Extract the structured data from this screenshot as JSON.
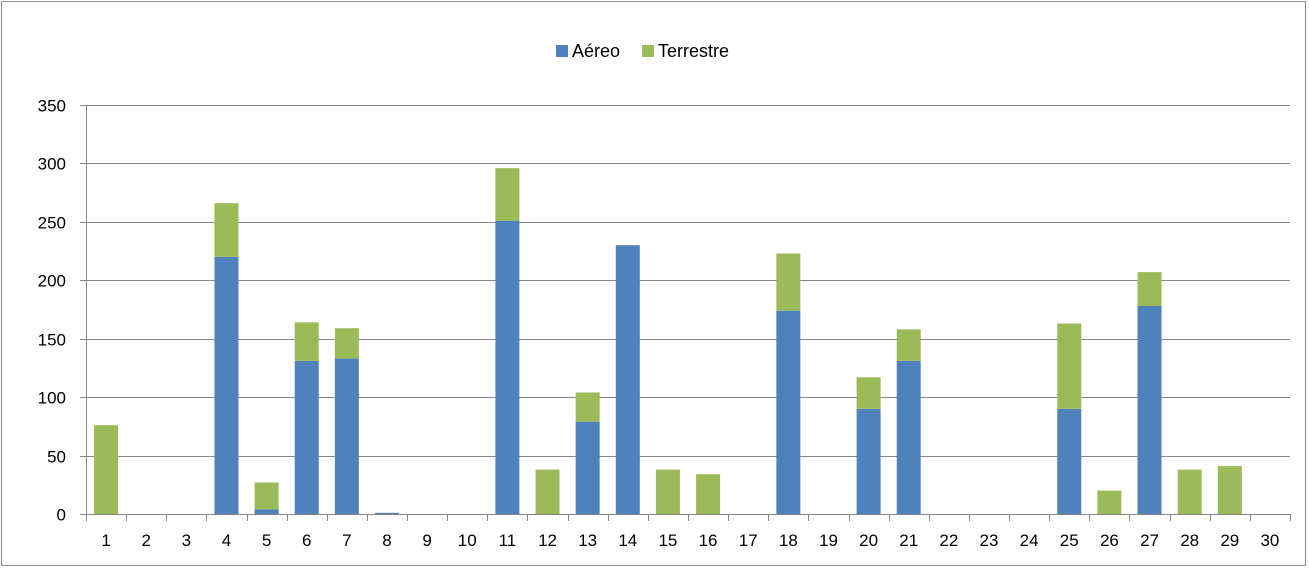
{
  "chart_data": {
    "type": "bar",
    "stacked": true,
    "categories": [
      "1",
      "2",
      "3",
      "4",
      "5",
      "6",
      "7",
      "8",
      "9",
      "10",
      "11",
      "12",
      "13",
      "14",
      "15",
      "16",
      "17",
      "18",
      "19",
      "20",
      "21",
      "22",
      "23",
      "24",
      "25",
      "26",
      "27",
      "28",
      "29",
      "30"
    ],
    "series": [
      {
        "name": "Aéreo",
        "color": "#4f81bd",
        "values": [
          0,
          0,
          0,
          220,
          4,
          131,
          133,
          1,
          0,
          0,
          251,
          0,
          79,
          230,
          0,
          0,
          0,
          174,
          0,
          90,
          131,
          0,
          0,
          0,
          90,
          0,
          178,
          0,
          0,
          0
        ]
      },
      {
        "name": "Terrestre",
        "color": "#9bbb59",
        "values": [
          76,
          0,
          0,
          46,
          23,
          33,
          26,
          0,
          0,
          0,
          45,
          38,
          25,
          0,
          38,
          34,
          0,
          49,
          0,
          27,
          27,
          0,
          0,
          0,
          73,
          20,
          29,
          38,
          41,
          0
        ]
      }
    ],
    "ylim": [
      0,
      350
    ],
    "yticks": [
      "0",
      "50",
      "100",
      "150",
      "200",
      "250",
      "300",
      "350"
    ],
    "grid": true,
    "legend_position": "top-center"
  }
}
